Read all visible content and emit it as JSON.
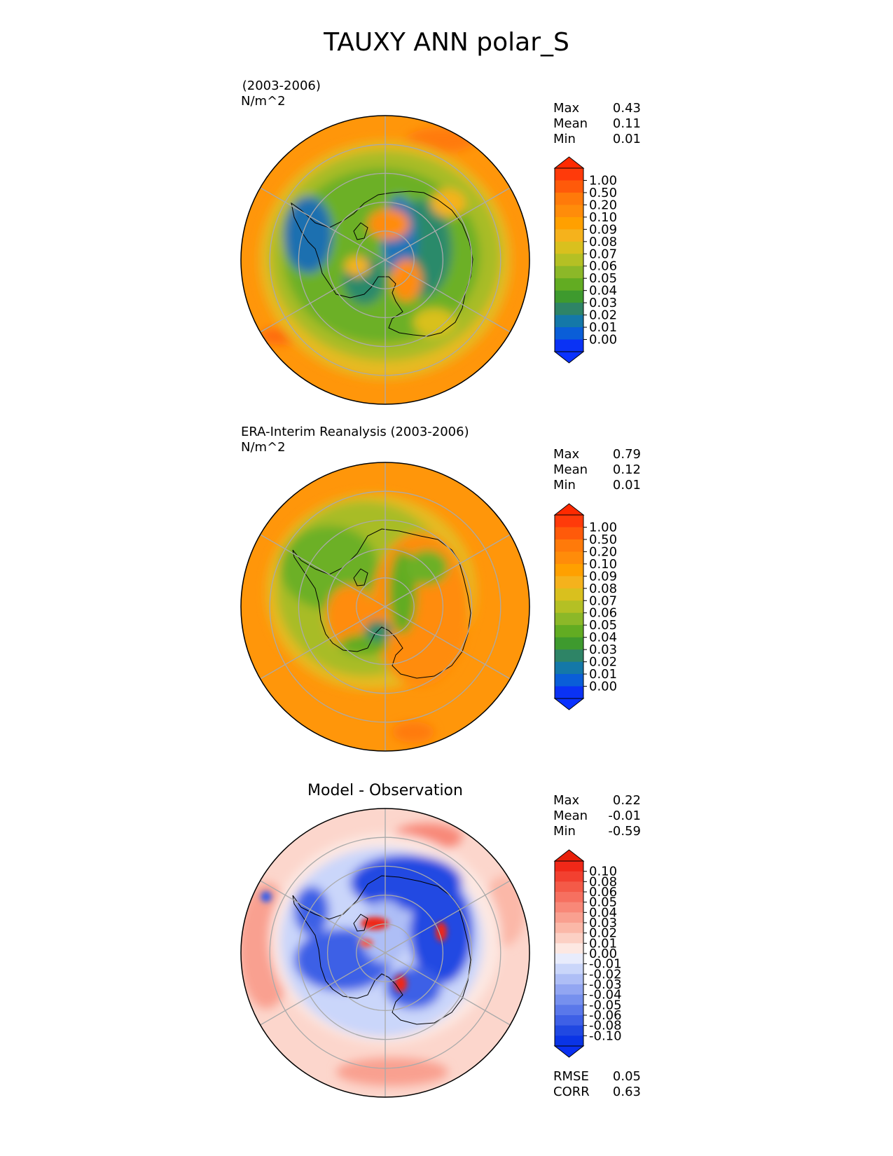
{
  "title": "TAUXY ANN polar_S",
  "panels": [
    {
      "id": "model",
      "header": " (2003-2006)",
      "units": "N/m^2",
      "subtitle": "",
      "stats": [
        {
          "label": "Max",
          "value": "0.43"
        },
        {
          "label": "Mean",
          "value": "0.11"
        },
        {
          "label": "Min",
          "value": "0.01"
        }
      ],
      "colorbar": {
        "ticks": [
          "1.00",
          "0.50",
          "0.20",
          "0.10",
          "0.09",
          "0.08",
          "0.07",
          "0.06",
          "0.05",
          "0.04",
          "0.03",
          "0.02",
          "0.01",
          "0.00"
        ],
        "colors": [
          "#ff3a0a",
          "#ff5a0a",
          "#ff7a0a",
          "#ff8c0a",
          "#ffa000",
          "#f5b21c",
          "#d9c01e",
          "#b4c024",
          "#8cb828",
          "#62ac22",
          "#3e9a2e",
          "#2e8466",
          "#1478a8",
          "#0a5ed8",
          "#0a32f5"
        ],
        "over_color": "#ff2a00",
        "under_color": "#0a32ff"
      },
      "extra_stats": []
    },
    {
      "id": "obs",
      "header": "ERA-Interim Reanalysis (2003-2006)",
      "units": "N/m^2",
      "subtitle": "",
      "stats": [
        {
          "label": "Max",
          "value": "0.79"
        },
        {
          "label": "Mean",
          "value": "0.12"
        },
        {
          "label": "Min",
          "value": "0.01"
        }
      ],
      "colorbar": {
        "ticks": [
          "1.00",
          "0.50",
          "0.20",
          "0.10",
          "0.09",
          "0.08",
          "0.07",
          "0.06",
          "0.05",
          "0.04",
          "0.03",
          "0.02",
          "0.01",
          "0.00"
        ],
        "colors": [
          "#ff3a0a",
          "#ff5a0a",
          "#ff7a0a",
          "#ff8c0a",
          "#ffa000",
          "#f5b21c",
          "#d9c01e",
          "#b4c024",
          "#8cb828",
          "#62ac22",
          "#3e9a2e",
          "#2e8466",
          "#1478a8",
          "#0a5ed8",
          "#0a32f5"
        ],
        "over_color": "#ff2a00",
        "under_color": "#0a32ff"
      },
      "extra_stats": []
    },
    {
      "id": "diff",
      "header": "",
      "units": "",
      "subtitle": "Model - Observation",
      "stats": [
        {
          "label": "Max",
          "value": "0.22"
        },
        {
          "label": "Mean",
          "value": "-0.01"
        },
        {
          "label": "Min",
          "value": "-0.59"
        }
      ],
      "colorbar": {
        "ticks": [
          "0.10",
          "0.08",
          "0.06",
          "0.05",
          "0.04",
          "0.03",
          "0.02",
          "0.01",
          "0.00",
          "-0.01",
          "-0.02",
          "-0.03",
          "-0.04",
          "-0.05",
          "-0.06",
          "-0.08",
          "-0.10"
        ],
        "colors": [
          "#f02818",
          "#f24030",
          "#f45a48",
          "#f67060",
          "#f88878",
          "#f9a090",
          "#fbb8a8",
          "#fcd0c4",
          "#fde8e2",
          "#e8ecfc",
          "#cad6fa",
          "#aebef6",
          "#92a6f2",
          "#7690ee",
          "#5a78ea",
          "#3e60e6",
          "#2048e2",
          "#0a34e6"
        ],
        "over_color": "#e8200a",
        "under_color": "#0a30f0"
      },
      "extra_stats": [
        {
          "label": "RMSE",
          "value": "0.05"
        },
        {
          "label": "CORR",
          "value": "0.63"
        }
      ]
    }
  ]
}
